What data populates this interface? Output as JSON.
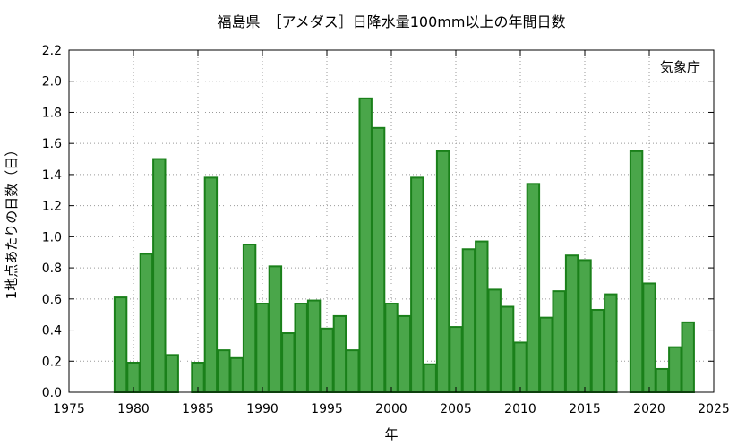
{
  "chart_data": {
    "type": "bar",
    "title": "福島県　［アメダス］日降水量100mm以上の年間日数",
    "xlabel": "年",
    "ylabel": "1地点あたりの日数（日）",
    "credit": "気象庁",
    "xlim": [
      1975,
      2025
    ],
    "ylim": [
      0,
      2.2
    ],
    "xticks": [
      "1975",
      "1980",
      "1985",
      "1990",
      "1995",
      "2000",
      "2005",
      "2010",
      "2015",
      "2020",
      "2025"
    ],
    "yticks": [
      "0.0",
      "0.2",
      "0.4",
      "0.6",
      "0.8",
      "1.0",
      "1.2",
      "1.4",
      "1.6",
      "1.8",
      "2.0",
      "2.2"
    ],
    "grid": true,
    "bar_color": "#4aa64a",
    "bar_edge_color": "#1a801a",
    "x": [
      1979,
      1980,
      1981,
      1982,
      1983,
      1984,
      1985,
      1986,
      1987,
      1988,
      1989,
      1990,
      1991,
      1992,
      1993,
      1994,
      1995,
      1996,
      1997,
      1998,
      1999,
      2000,
      2001,
      2002,
      2003,
      2004,
      2005,
      2006,
      2007,
      2008,
      2009,
      2010,
      2011,
      2012,
      2013,
      2014,
      2015,
      2016,
      2017,
      2018,
      2019,
      2020,
      2021,
      2022,
      2023
    ],
    "values": [
      0.61,
      0.19,
      0.89,
      1.5,
      0.24,
      0.0,
      0.19,
      1.38,
      0.27,
      0.22,
      0.95,
      0.57,
      0.81,
      0.38,
      0.57,
      0.59,
      0.41,
      0.49,
      0.27,
      1.89,
      1.7,
      0.57,
      0.49,
      1.38,
      0.18,
      1.55,
      0.42,
      0.92,
      0.97,
      0.66,
      0.55,
      0.32,
      1.34,
      0.48,
      0.65,
      0.88,
      0.85,
      0.53,
      0.63,
      0.0,
      1.55,
      0.7,
      0.15,
      0.29,
      0.45
    ]
  }
}
